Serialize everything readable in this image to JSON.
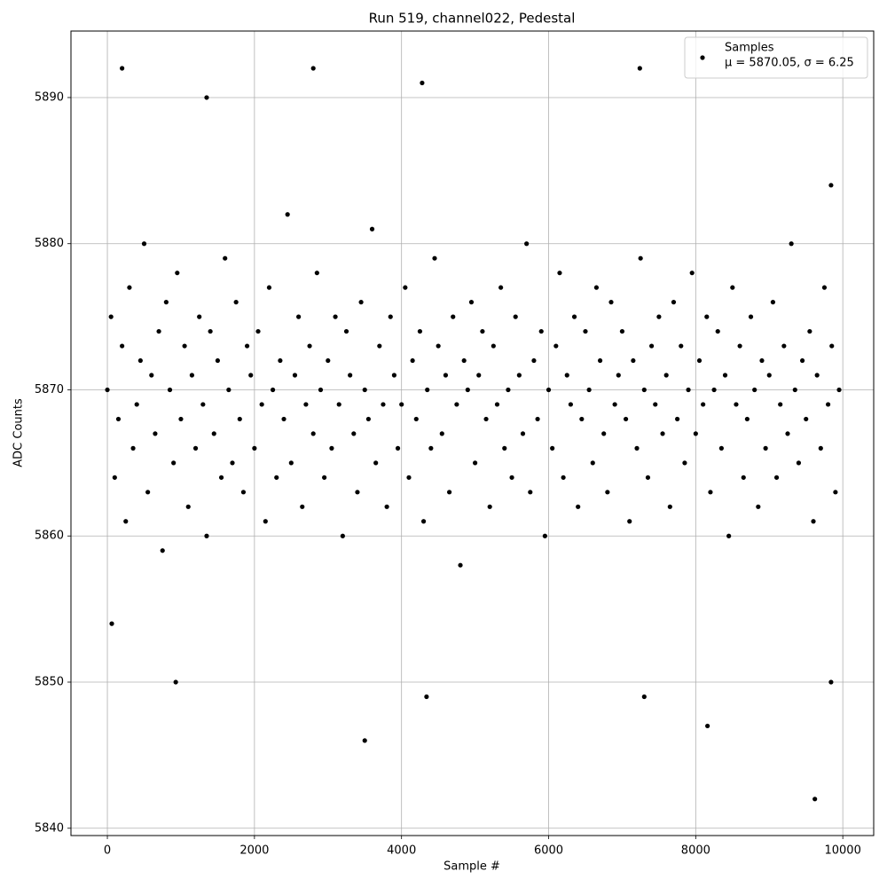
{
  "chart_data": {
    "type": "scatter",
    "title": "Run 519, channel022, Pedestal",
    "x_label": "Sample #",
    "y_label": "ADC Counts",
    "xlim": [
      -495,
      10420
    ],
    "ylim": [
      5839.5,
      5894.55
    ],
    "xticks": [
      0,
      2000,
      4000,
      6000,
      8000,
      10000
    ],
    "yticks": [
      5840,
      5850,
      5860,
      5870,
      5880,
      5890
    ],
    "grid": true,
    "legend_position": "upper right",
    "legend_text": "μ = 5870.05, σ = 6.25",
    "series": [
      {
        "name": "Samples",
        "color": "#000000",
        "x": [
          0,
          50,
          100,
          150,
          200,
          250,
          300,
          350,
          400,
          450,
          500,
          550,
          600,
          650,
          700,
          750,
          800,
          850,
          900,
          950,
          1000,
          1050,
          1100,
          1150,
          1200,
          1250,
          1300,
          1350,
          1400,
          1450,
          1500,
          1550,
          1600,
          1650,
          1700,
          1750,
          1800,
          1850,
          1900,
          1950,
          2000,
          2050,
          2100,
          2150,
          2200,
          2250,
          2300,
          2350,
          2400,
          2450,
          2500,
          2550,
          2600,
          2650,
          2700,
          2750,
          2800,
          2850,
          2900,
          2950,
          3000,
          3050,
          3100,
          3150,
          3200,
          3250,
          3300,
          3350,
          3400,
          3450,
          3500,
          3550,
          3600,
          3650,
          3700,
          3750,
          3800,
          3850,
          3900,
          3950,
          4000,
          4050,
          4100,
          4150,
          4200,
          4250,
          4300,
          4350,
          4400,
          4450,
          4500,
          4550,
          4600,
          4650,
          4700,
          4750,
          4800,
          4850,
          4900,
          4950,
          5000,
          5050,
          5100,
          5150,
          5200,
          5250,
          5300,
          5350,
          5400,
          5450,
          5500,
          5550,
          5600,
          5650,
          5700,
          5750,
          5800,
          5850,
          5900,
          5950,
          6000,
          6050,
          6100,
          6150,
          6200,
          6250,
          6300,
          6350,
          6400,
          6450,
          6500,
          6550,
          6600,
          6650,
          6700,
          6750,
          6800,
          6850,
          6900,
          6950,
          7000,
          7050,
          7100,
          7150,
          7200,
          7250,
          7300,
          7350,
          7400,
          7450,
          7500,
          7550,
          7600,
          7650,
          7700,
          7750,
          7800,
          7850,
          7900,
          7950,
          8000,
          8050,
          8100,
          8150,
          8200,
          8250,
          8300,
          8350,
          8400,
          8450,
          8500,
          8550,
          8600,
          8650,
          8700,
          8750,
          8800,
          8850,
          8900,
          8950,
          9000,
          9050,
          9100,
          9150,
          9200,
          9250,
          9300,
          9350,
          9400,
          9450,
          9500,
          9550,
          9600,
          9650,
          9700,
          9750,
          9800,
          9850,
          9900,
          9950,
          200,
          930,
          1350,
          2800,
          3500,
          4280,
          4340,
          7240,
          7300,
          8160,
          9620,
          9840,
          9840,
          60
        ],
        "values": [
          5870,
          5875,
          5864,
          5868,
          5873,
          5861,
          5877,
          5866,
          5869,
          5872,
          5880,
          5863,
          5871,
          5867,
          5874,
          5859,
          5876,
          5870,
          5865,
          5878,
          5868,
          5873,
          5862,
          5871,
          5866,
          5875,
          5869,
          5860,
          5874,
          5867,
          5872,
          5864,
          5879,
          5870,
          5865,
          5876,
          5868,
          5863,
          5873,
          5871,
          5866,
          5874,
          5869,
          5861,
          5877,
          5870,
          5864,
          5872,
          5868,
          5882,
          5865,
          5871,
          5875,
          5862,
          5869,
          5873,
          5867,
          5878,
          5870,
          5864,
          5872,
          5866,
          5875,
          5869,
          5860,
          5874,
          5871,
          5867,
          5863,
          5876,
          5870,
          5868,
          5881,
          5865,
          5873,
          5869,
          5862,
          5875,
          5871,
          5866,
          5869,
          5877,
          5864,
          5872,
          5868,
          5874,
          5861,
          5870,
          5866,
          5879,
          5873,
          5867,
          5871,
          5863,
          5875,
          5869,
          5858,
          5872,
          5870,
          5876,
          5865,
          5871,
          5874,
          5868,
          5862,
          5873,
          5869,
          5877,
          5866,
          5870,
          5864,
          5875,
          5871,
          5867,
          5880,
          5863,
          5872,
          5868,
          5874,
          5860,
          5870,
          5866,
          5873,
          5878,
          5864,
          5871,
          5869,
          5875,
          5862,
          5868,
          5874,
          5870,
          5865,
          5877,
          5872,
          5867,
          5863,
          5876,
          5869,
          5871,
          5874,
          5868,
          5861,
          5872,
          5866,
          5879,
          5870,
          5864,
          5873,
          5869,
          5875,
          5867,
          5871,
          5862,
          5876,
          5868,
          5873,
          5865,
          5870,
          5878,
          5867,
          5872,
          5869,
          5875,
          5863,
          5870,
          5874,
          5866,
          5871,
          5860,
          5877,
          5869,
          5873,
          5864,
          5868,
          5875,
          5870,
          5862,
          5872,
          5866,
          5871,
          5876,
          5864,
          5869,
          5873,
          5867,
          5880,
          5870,
          5865,
          5872,
          5868,
          5874,
          5861,
          5871,
          5866,
          5877,
          5869,
          5873,
          5863,
          5870,
          5892,
          5850,
          5890,
          5892,
          5846,
          5891,
          5849,
          5892,
          5849,
          5847,
          5842,
          5850,
          5884,
          5854
        ]
      }
    ]
  }
}
